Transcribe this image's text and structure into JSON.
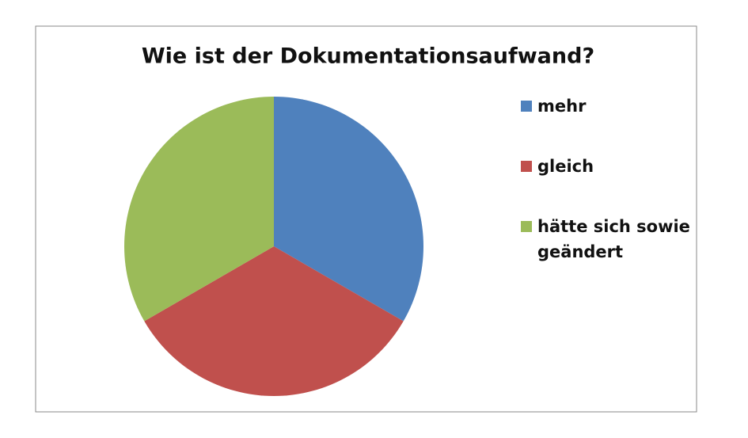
{
  "chart_data": {
    "type": "pie",
    "title": "Wie ist der Dokumentationsaufwand?",
    "categories": [
      "mehr",
      "gleich",
      "hätte sich sowie geändert"
    ],
    "values": [
      33.3,
      33.3,
      33.3
    ],
    "colors": [
      "#4f81bd",
      "#c0504d",
      "#9bbb59"
    ],
    "legend": "right"
  }
}
